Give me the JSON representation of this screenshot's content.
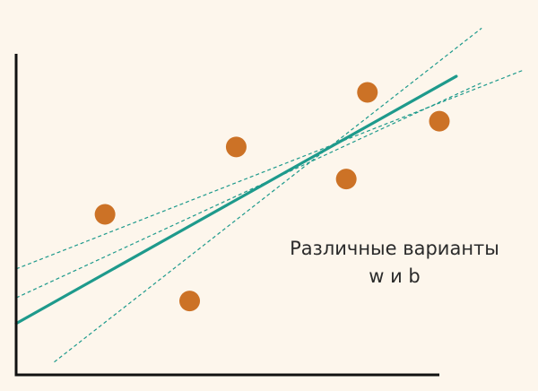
{
  "chart_data": {
    "type": "scatter",
    "title": "",
    "xlabel": "",
    "ylabel": "",
    "xlim": [
      0,
      100
    ],
    "ylim": [
      0,
      100
    ],
    "grid": false,
    "axes_ticks": false,
    "points": [
      {
        "x": 21,
        "y": 50
      },
      {
        "x": 41,
        "y": 23
      },
      {
        "x": 52,
        "y": 71
      },
      {
        "x": 78,
        "y": 61
      },
      {
        "x": 83,
        "y": 88
      },
      {
        "x": 100,
        "y": 79
      }
    ],
    "lines": [
      {
        "style": "solid",
        "x1": 0,
        "y1": 16,
        "x2": 104,
        "y2": 93
      },
      {
        "style": "dashed",
        "x1": 0,
        "y1": 33,
        "x2": 120,
        "y2": 95
      },
      {
        "style": "dashed",
        "x1": 0,
        "y1": 24,
        "x2": 110,
        "y2": 91
      },
      {
        "style": "dashed",
        "x1": 9,
        "y1": 4,
        "x2": 110,
        "y2": 108
      }
    ],
    "annotation": {
      "line1": "Различные варианты",
      "line2": "w и b"
    },
    "colors": {
      "points": "#cc7226",
      "lines": "#1e9a8c",
      "axes": "#111111",
      "background": "#fdf6ec"
    }
  }
}
